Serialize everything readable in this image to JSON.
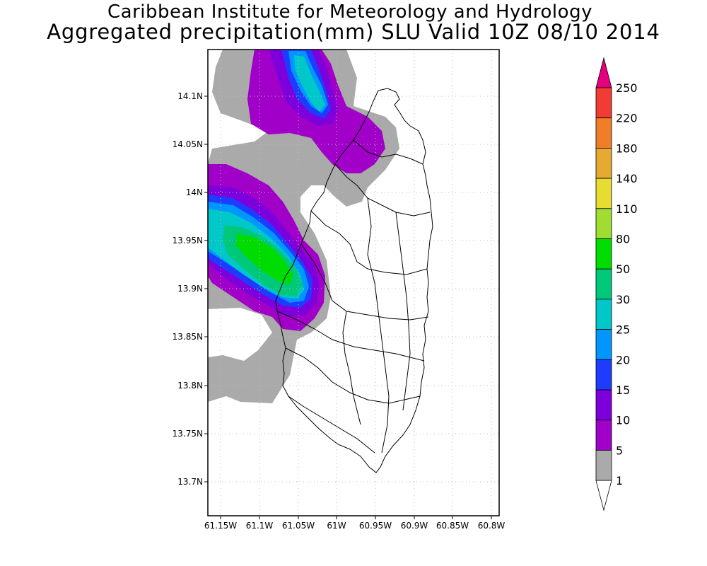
{
  "header": {
    "title_line1": "Caribbean Institute for Meteorology and Hydrology",
    "title_line2": "Aggregated precipitation(mm) SLU Valid 10Z 08/10 2014"
  },
  "map": {
    "region": "Saint Lucia",
    "y_ticks": [
      "14.1N",
      "14.05N",
      "14N",
      "13.95N",
      "13.9N",
      "13.85N",
      "13.8N",
      "13.75N",
      "13.7N"
    ],
    "x_ticks": [
      "61.15W",
      "61.1W",
      "61.05W",
      "61W",
      "60.95W",
      "60.9W",
      "60.85W",
      "60.8W"
    ],
    "grid": true
  },
  "colorbar": {
    "labels": [
      "250",
      "220",
      "180",
      "140",
      "110",
      "80",
      "50",
      "30",
      "25",
      "20",
      "15",
      "10",
      "5",
      "1"
    ],
    "colors": [
      "#e6007e",
      "#f03c32",
      "#f07d28",
      "#e6aa32",
      "#e6dc32",
      "#a0dc32",
      "#00dc00",
      "#00c87a",
      "#00c8c8",
      "#0096ff",
      "#1e3cff",
      "#7d00dc",
      "#a000c8",
      "#aaaaaa",
      "#ffffff"
    ]
  },
  "legend_title": ""
}
